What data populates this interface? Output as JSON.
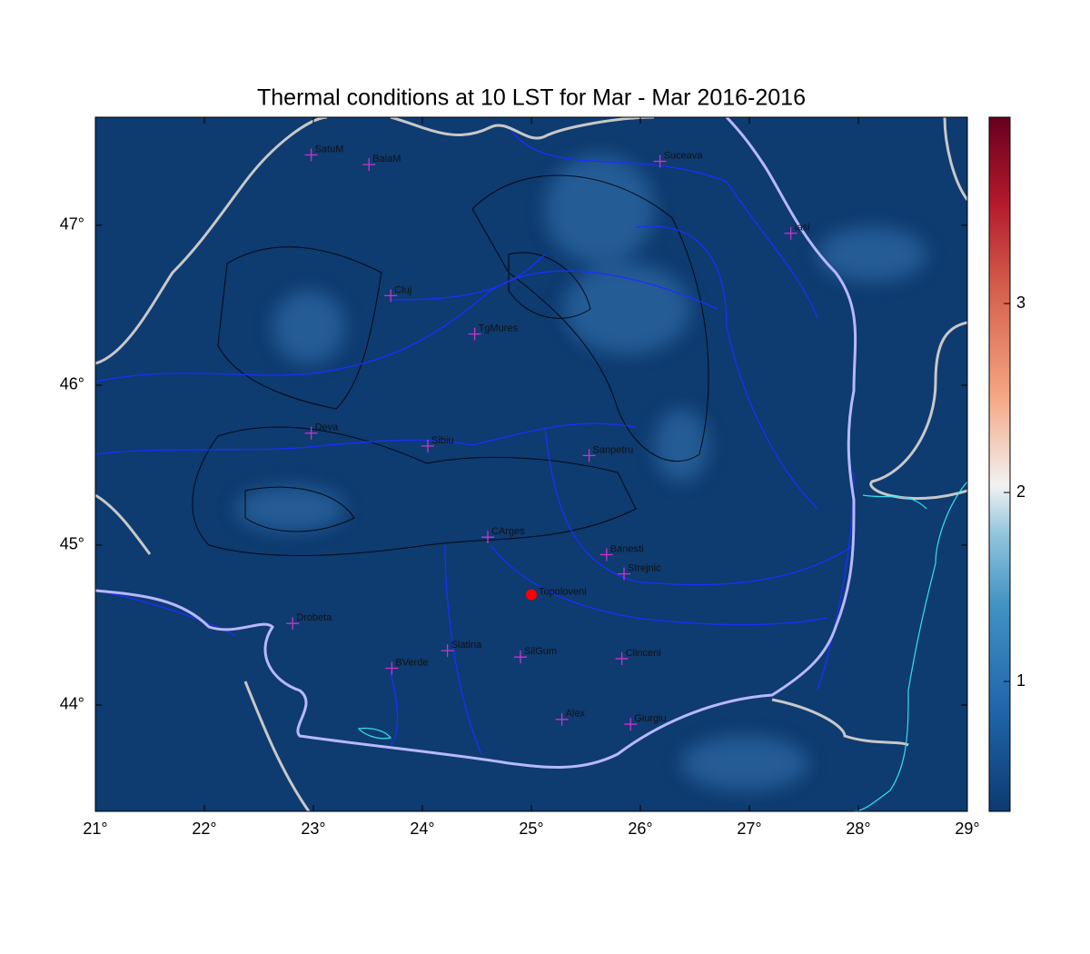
{
  "chart_data": {
    "type": "map",
    "title": "Thermal conditions at 10 LST for Mar - Mar  2016-2016",
    "xlim": [
      21,
      29
    ],
    "ylim": [
      43.335,
      47.676
    ],
    "xticks": [
      {
        "value": 21,
        "label": "21°"
      },
      {
        "value": 22,
        "label": "22°"
      },
      {
        "value": 23,
        "label": "23°"
      },
      {
        "value": 24,
        "label": "24°"
      },
      {
        "value": 25,
        "label": "25°"
      },
      {
        "value": 26,
        "label": "26°"
      },
      {
        "value": 27,
        "label": "27°"
      },
      {
        "value": 28,
        "label": "28°"
      },
      {
        "value": 29,
        "label": "29°"
      }
    ],
    "yticks": [
      {
        "value": 44,
        "label": "44°"
      },
      {
        "value": 45,
        "label": "45°"
      },
      {
        "value": 46,
        "label": "46°"
      },
      {
        "value": 47,
        "label": "47°"
      }
    ],
    "clim": [
      0.3125,
      3.986
    ],
    "cticks": [
      1,
      2,
      3
    ],
    "cities": [
      {
        "name": "SatuM",
        "lon": 22.98,
        "lat": 47.44
      },
      {
        "name": "BaiaM",
        "lon": 23.51,
        "lat": 47.38
      },
      {
        "name": "Suceava",
        "lon": 26.18,
        "lat": 47.4
      },
      {
        "name": "Iasi",
        "lon": 27.38,
        "lat": 46.95
      },
      {
        "name": "Cluj",
        "lon": 23.71,
        "lat": 46.56
      },
      {
        "name": "TgMures",
        "lon": 24.48,
        "lat": 46.32
      },
      {
        "name": "Deva",
        "lon": 22.98,
        "lat": 45.7
      },
      {
        "name": "Sibiu",
        "lon": 24.05,
        "lat": 45.62
      },
      {
        "name": "Sanpetru",
        "lon": 25.53,
        "lat": 45.56
      },
      {
        "name": "CArges",
        "lon": 24.6,
        "lat": 45.05
      },
      {
        "name": "Banesti",
        "lon": 25.69,
        "lat": 44.94
      },
      {
        "name": "Strejnic",
        "lon": 25.85,
        "lat": 44.82
      },
      {
        "name": "Drobeta",
        "lon": 22.81,
        "lat": 44.51
      },
      {
        "name": "Slatina",
        "lon": 24.23,
        "lat": 44.34
      },
      {
        "name": "SilGum",
        "lon": 24.9,
        "lat": 44.3
      },
      {
        "name": "Clinceni",
        "lon": 25.83,
        "lat": 44.29
      },
      {
        "name": "BVerde",
        "lon": 23.72,
        "lat": 44.23
      },
      {
        "name": "Alex",
        "lon": 25.28,
        "lat": 43.91
      },
      {
        "name": "Giurgiu",
        "lon": 25.91,
        "lat": 43.88
      }
    ],
    "city_color": "#cc33cc",
    "highlight": {
      "name": "Topoloveni",
      "lon": 25.0,
      "lat": 44.69,
      "color": "#ff0000"
    }
  }
}
